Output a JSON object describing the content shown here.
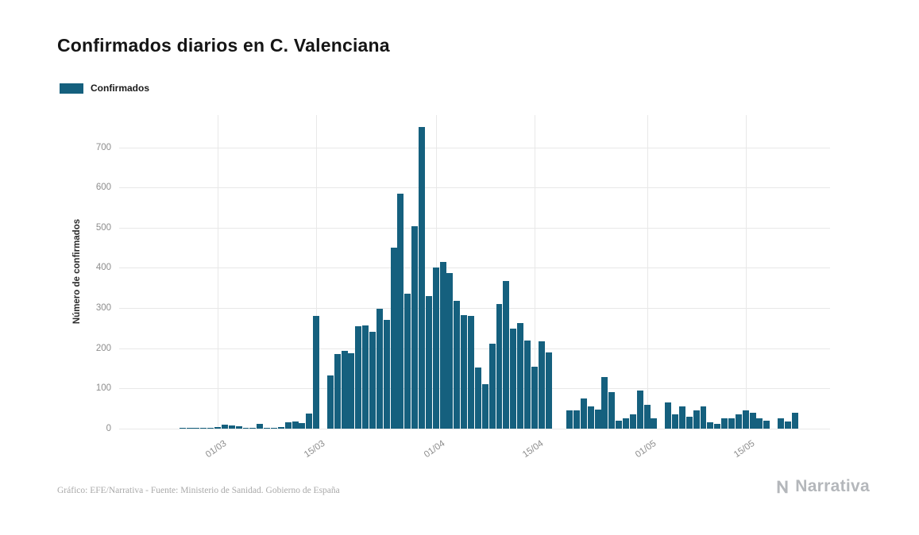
{
  "page": {
    "title": "Confirmados diarios en C. Valenciana",
    "footer_credit": "Gráfico: EFE/Narrativa - Fuente: Ministerio de Sanidad. Gobierno de España",
    "brand": "Narrativa"
  },
  "chart_data": {
    "type": "bar",
    "title": "Confirmados diarios en C. Valenciana",
    "xlabel": "",
    "ylabel": "Número de confirmados",
    "legend": [
      "Confirmados"
    ],
    "legend_position": "top-left",
    "grid": true,
    "bar_color": "#15607e",
    "ylim": [
      0,
      780
    ],
    "yticks": [
      0,
      100,
      200,
      300,
      400,
      500,
      600,
      700
    ],
    "xticks": [
      "01/03",
      "15/03",
      "01/04",
      "15/04",
      "01/05",
      "15/05"
    ],
    "x": [
      "25/02",
      "26/02",
      "27/02",
      "28/02",
      "29/02",
      "01/03",
      "02/03",
      "03/03",
      "04/03",
      "05/03",
      "06/03",
      "07/03",
      "08/03",
      "09/03",
      "10/03",
      "11/03",
      "12/03",
      "13/03",
      "14/03",
      "15/03",
      "16/03",
      "17/03",
      "18/03",
      "19/03",
      "20/03",
      "21/03",
      "22/03",
      "23/03",
      "24/03",
      "25/03",
      "26/03",
      "27/03",
      "28/03",
      "29/03",
      "30/03",
      "31/03",
      "01/04",
      "02/04",
      "03/04",
      "04/04",
      "05/04",
      "06/04",
      "07/04",
      "08/04",
      "09/04",
      "10/04",
      "11/04",
      "12/04",
      "13/04",
      "14/04",
      "15/04",
      "16/04",
      "17/04",
      "18/04",
      "19/04",
      "20/04",
      "21/04",
      "22/04",
      "23/04",
      "24/04",
      "25/04",
      "26/04",
      "27/04",
      "28/04",
      "29/04",
      "30/04",
      "01/05",
      "02/05",
      "03/05",
      "04/05",
      "05/05",
      "06/05",
      "07/05",
      "08/05",
      "09/05",
      "10/05",
      "11/05",
      "12/05",
      "13/05",
      "14/05",
      "15/05",
      "16/05",
      "17/05",
      "18/05",
      "19/05",
      "20/05",
      "21/05",
      "22/05"
    ],
    "values": [
      1,
      2,
      1,
      2,
      1,
      3,
      10,
      8,
      6,
      1,
      2,
      12,
      1,
      2,
      4,
      15,
      17,
      14,
      38,
      281,
      0,
      133,
      185,
      193,
      188,
      255,
      257,
      240,
      298,
      270,
      450,
      585,
      335,
      503,
      750,
      330,
      400,
      415,
      388,
      318,
      283,
      280,
      152,
      110,
      212,
      310,
      368,
      248,
      263,
      220,
      155,
      218,
      190,
      0,
      0,
      45,
      45,
      75,
      55,
      48,
      128,
      90,
      20,
      25,
      35,
      95,
      60,
      25,
      0,
      65,
      35,
      55,
      30,
      45,
      55,
      15,
      12,
      25,
      25,
      35,
      45,
      40,
      25,
      20,
      0,
      25,
      18,
      40
    ]
  }
}
